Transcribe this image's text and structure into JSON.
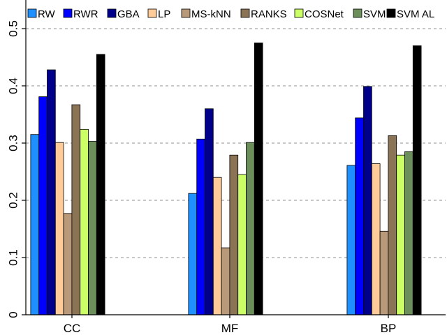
{
  "chart_data": {
    "type": "bar",
    "title": "",
    "xlabel": "",
    "ylabel": "",
    "categories": [
      "CC",
      "MF",
      "BP"
    ],
    "ylim": [
      0,
      0.5
    ],
    "yticks": [
      0,
      0.1,
      0.2,
      0.3,
      0.4,
      0.5
    ],
    "ytick_labels": [
      "0",
      "0.1",
      "0.2",
      "0.3",
      "0.4",
      "0.5"
    ],
    "grid": "horizontal dashed",
    "legend_placement": "top",
    "series": [
      {
        "name": "RW",
        "color": "#1e90ff",
        "values": [
          0.315,
          0.212,
          0.261
        ]
      },
      {
        "name": "RWR",
        "color": "#0000ff",
        "values": [
          0.381,
          0.307,
          0.344
        ]
      },
      {
        "name": "GBA",
        "color": "#00008b",
        "values": [
          0.428,
          0.36,
          0.399
        ]
      },
      {
        "name": "LP",
        "color": "#ffcc99",
        "values": [
          0.301,
          0.24,
          0.264
        ]
      },
      {
        "name": "MS-kNN",
        "color": "#b8997a",
        "values": [
          0.177,
          0.117,
          0.146
        ]
      },
      {
        "name": "RANKS",
        "color": "#8b7355",
        "values": [
          0.367,
          0.279,
          0.313
        ]
      },
      {
        "name": "COSNet",
        "color": "#ccff66",
        "values": [
          0.324,
          0.245,
          0.279
        ]
      },
      {
        "name": "SVM",
        "color": "#6b8e5a",
        "values": [
          0.303,
          0.301,
          0.285
        ]
      },
      {
        "name": "SVM AL",
        "color": "#000000",
        "values": [
          0.455,
          0.475,
          0.47
        ]
      }
    ]
  }
}
